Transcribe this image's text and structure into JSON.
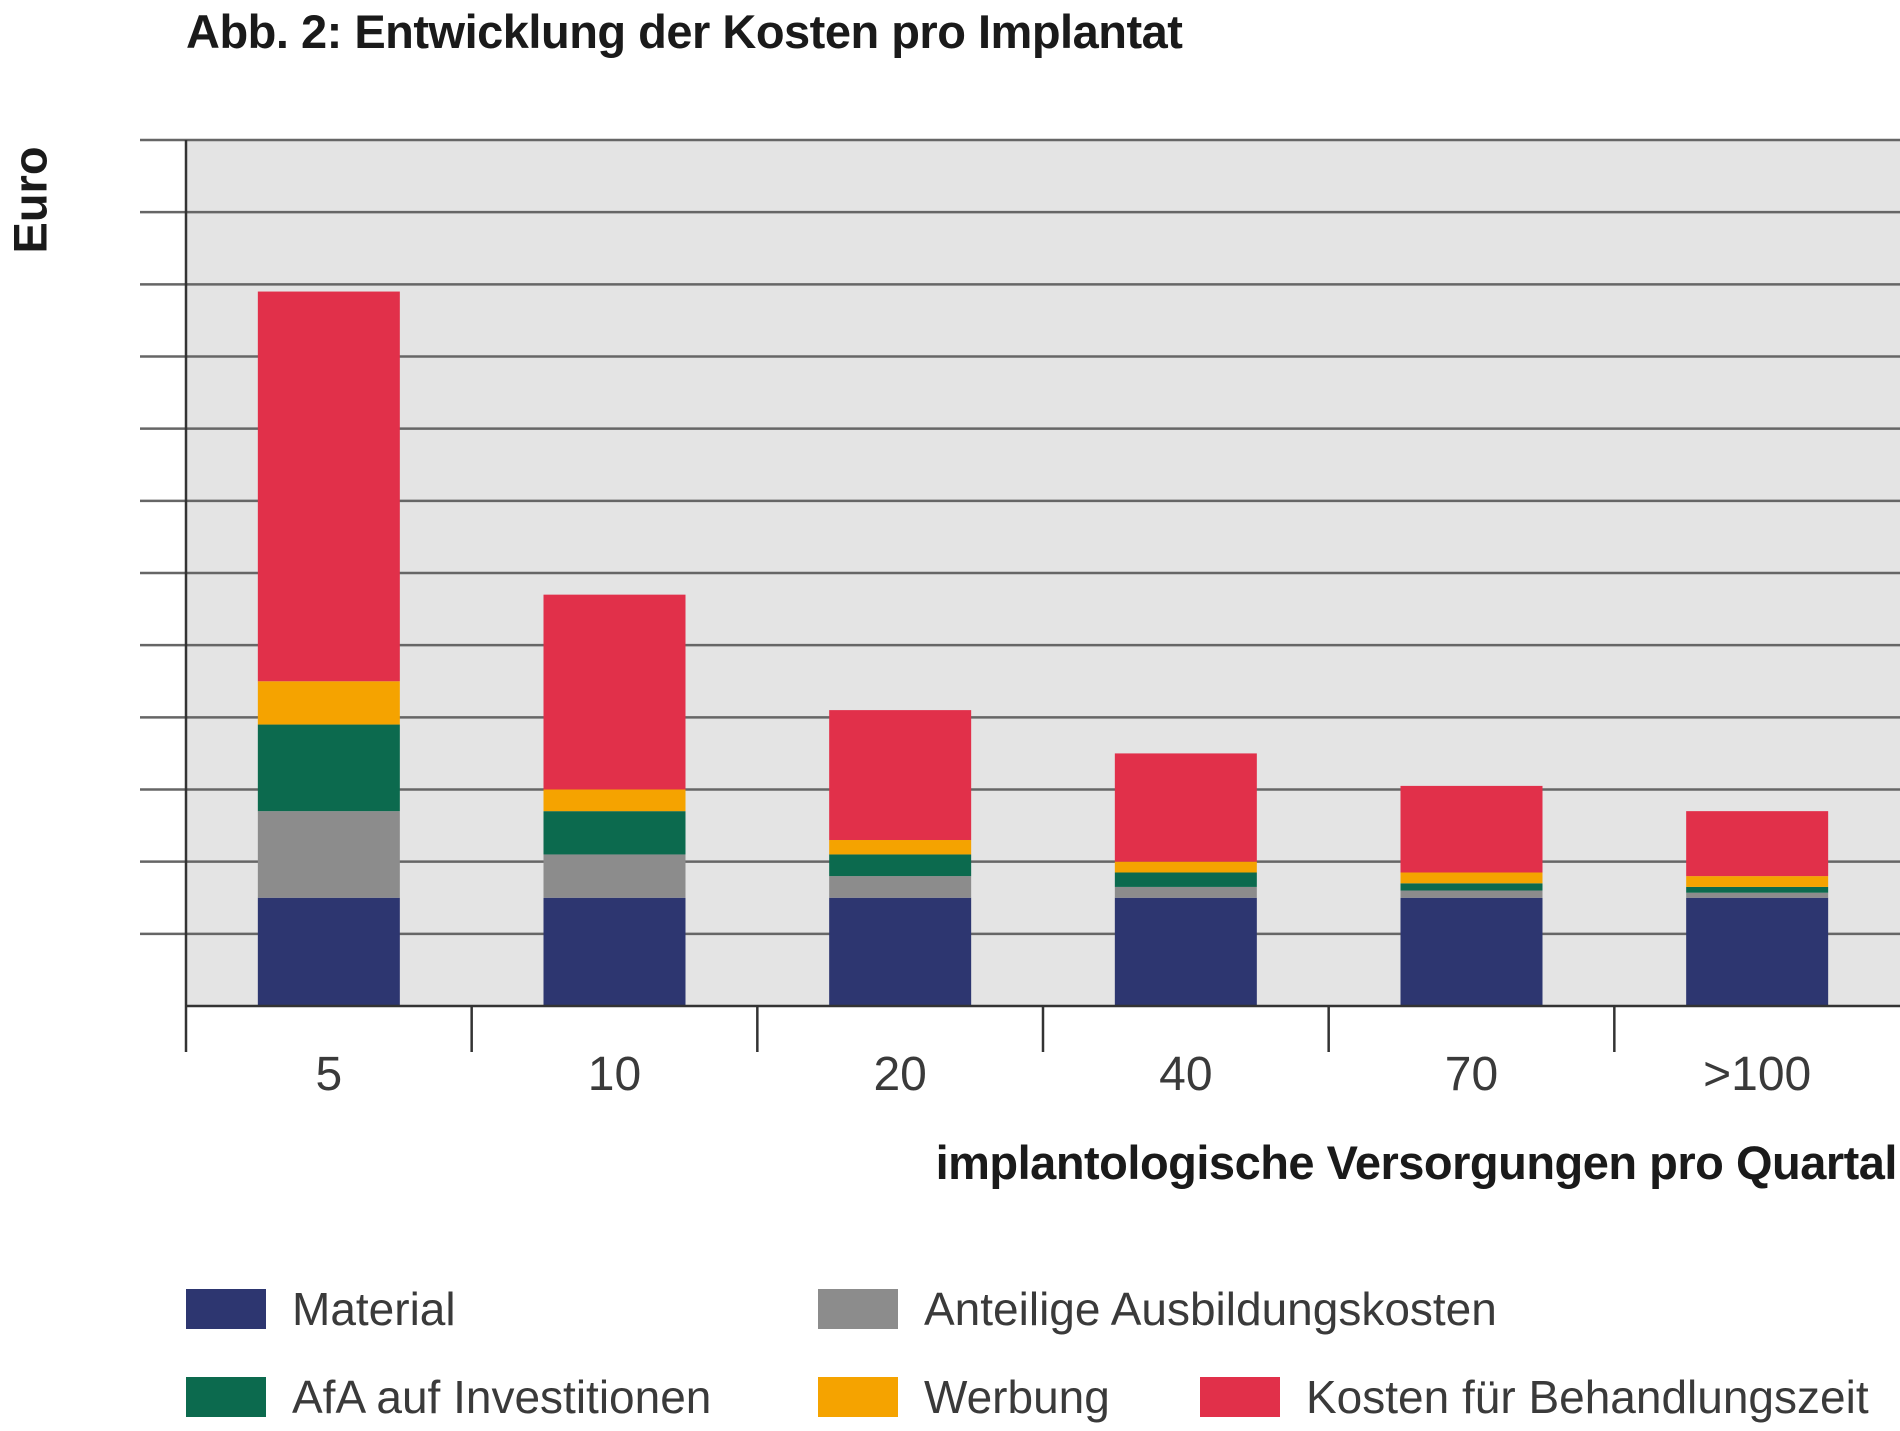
{
  "chart_data": {
    "type": "bar",
    "stacked": true,
    "title": "Abb. 2: Entwicklung der Kosten pro Implantat",
    "xlabel": "implantologische Versorgungen pro Quartal",
    "ylabel": "Euro",
    "categories": [
      "5",
      "10",
      "20",
      "40",
      "70",
      ">100"
    ],
    "ylim": [
      0,
      12
    ],
    "gridlines": 12,
    "y_tick_labels": false,
    "grid": true,
    "legend_position": "bottom",
    "series": [
      {
        "name": "Material",
        "color": "#2d3670",
        "values": [
          1.5,
          1.5,
          1.5,
          1.5,
          1.5,
          1.5
        ]
      },
      {
        "name": "Anteilige Ausbildungskosten",
        "color": "#8c8c8c",
        "values": [
          1.2,
          0.6,
          0.3,
          0.15,
          0.1,
          0.07
        ]
      },
      {
        "name": "AfA auf Investitionen",
        "color": "#0c6a4e",
        "values": [
          1.2,
          0.6,
          0.3,
          0.2,
          0.1,
          0.08
        ]
      },
      {
        "name": "Werbung",
        "color": "#f5a300",
        "values": [
          0.6,
          0.3,
          0.2,
          0.15,
          0.15,
          0.15
        ]
      },
      {
        "name": "Kosten für Behandlungszeit",
        "color": "#e1304a",
        "values": [
          5.4,
          2.7,
          1.8,
          1.5,
          1.2,
          0.9
        ]
      }
    ]
  }
}
